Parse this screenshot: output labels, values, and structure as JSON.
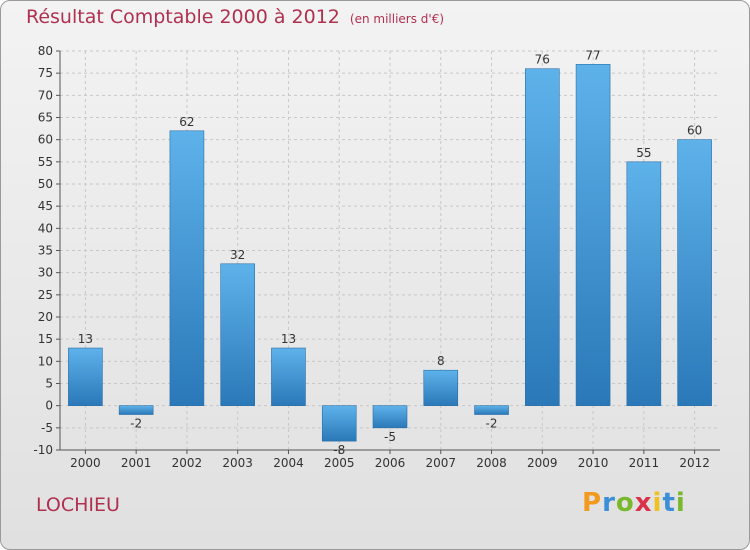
{
  "title": "Résultat Comptable 2000 à 2012",
  "unit": "(en milliers d'€)",
  "commune": "LOCHIEU",
  "logo_text": "Proxiti",
  "colors": {
    "title": "#b03050",
    "bar_light": "#5eb2ea",
    "bar_dark": "#2a78b8",
    "grid": "#c8c8c8"
  },
  "chart_data": {
    "type": "bar",
    "title": "Résultat Comptable 2000 à 2012",
    "xlabel": "",
    "ylabel": "en milliers d'€",
    "categories": [
      "2000",
      "2001",
      "2002",
      "2003",
      "2004",
      "2005",
      "2006",
      "2007",
      "2008",
      "2009",
      "2010",
      "2011",
      "2012"
    ],
    "values": [
      13,
      -2,
      62,
      32,
      13,
      -8,
      -5,
      8,
      -2,
      76,
      77,
      55,
      60
    ],
    "ylim": [
      -10,
      80
    ],
    "yticks": [
      -10,
      -5,
      0,
      5,
      10,
      15,
      20,
      25,
      30,
      35,
      40,
      45,
      50,
      55,
      60,
      65,
      70,
      75,
      80
    ],
    "grid": true
  }
}
